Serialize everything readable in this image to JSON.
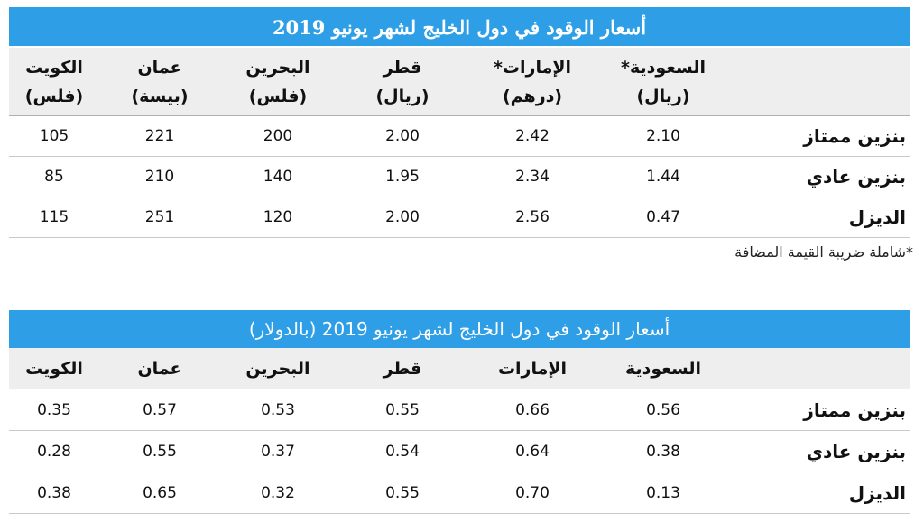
{
  "table1": {
    "title": "أسعار الوقود في دول الخليج لشهر يونيو 2019",
    "columns": [
      {
        "name": "السعودية*",
        "unit": "(ريال)"
      },
      {
        "name": "الإمارات*",
        "unit": "(درهم)"
      },
      {
        "name": "قطر",
        "unit": "(ريال)"
      },
      {
        "name": "البحرين",
        "unit": "(فلس)"
      },
      {
        "name": "عمان",
        "unit": "(بيسة)"
      },
      {
        "name": "الكويت",
        "unit": "(فلس)"
      }
    ],
    "rows": [
      {
        "label": "بنزين ممتاز",
        "values": [
          "2.10",
          "2.42",
          "2.00",
          "200",
          "221",
          "105"
        ]
      },
      {
        "label": "بنزين عادي",
        "values": [
          "1.44",
          "2.34",
          "1.95",
          "140",
          "210",
          "85"
        ]
      },
      {
        "label": "الديزل",
        "values": [
          "0.47",
          "2.56",
          "2.00",
          "120",
          "251",
          "115"
        ]
      }
    ],
    "note": "*شاملة ضريبة القيمة المضافة"
  },
  "table2": {
    "title": "أسعار الوقود في دول الخليج لشهر يونيو 2019 (بالدولار)",
    "columns": [
      "السعودية",
      "الإمارات",
      "قطر",
      "البحرين",
      "عمان",
      "الكويت"
    ],
    "rows": [
      {
        "label": "بنزين ممتاز",
        "values": [
          "0.56",
          "0.66",
          "0.55",
          "0.53",
          "0.57",
          "0.35"
        ]
      },
      {
        "label": "بنزين عادي",
        "values": [
          "0.38",
          "0.64",
          "0.54",
          "0.37",
          "0.55",
          "0.28"
        ]
      },
      {
        "label": "الديزل",
        "values": [
          "0.13",
          "0.70",
          "0.55",
          "0.32",
          "0.65",
          "0.38"
        ]
      }
    ]
  },
  "colors": {
    "header_blue": "#2e9fe6",
    "header_gray": "#eeeeee"
  }
}
